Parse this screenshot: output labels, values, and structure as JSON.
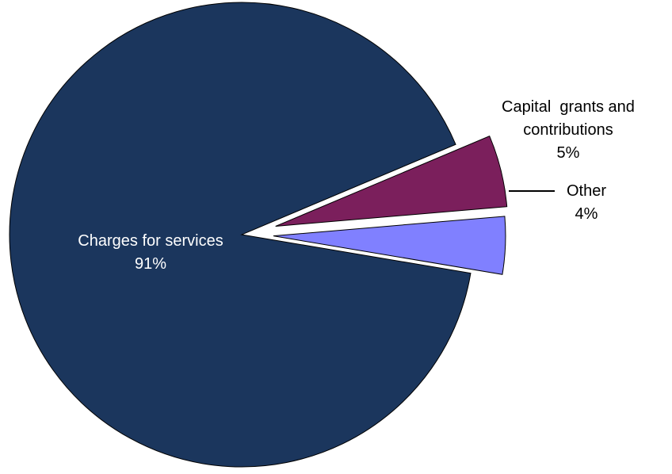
{
  "chart_data": {
    "type": "pie",
    "title": "",
    "slices": [
      {
        "name": "Charges for services",
        "label_lines": [
          "Charges for services",
          "91%"
        ],
        "value": 91,
        "percent_label": "91%",
        "color": "#1b365d",
        "exploded": false
      },
      {
        "name": "Capital grants and contributions",
        "label_lines": [
          "Capital  grants and",
          "contributions",
          "5%"
        ],
        "value": 5,
        "percent_label": "5%",
        "color": "#7b1f5c",
        "exploded": true
      },
      {
        "name": "Other",
        "label_lines": [
          "Other",
          "4%"
        ],
        "value": 4,
        "percent_label": "4%",
        "color": "#8080ff",
        "exploded": true
      }
    ],
    "legend": "none",
    "labels": "outside-with-leader-line"
  }
}
